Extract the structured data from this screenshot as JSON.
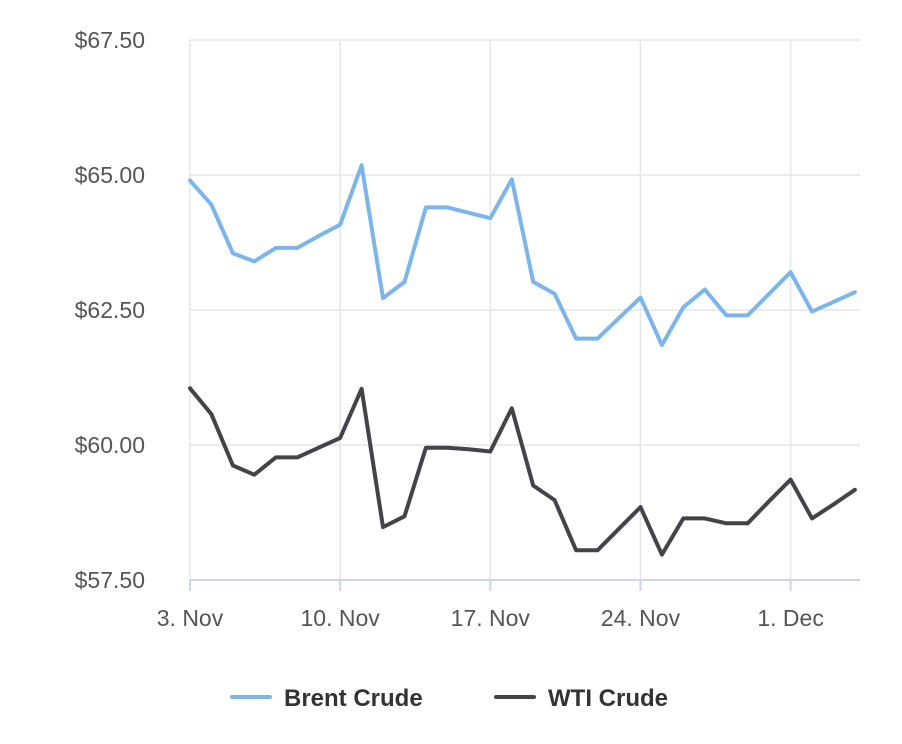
{
  "chart_data": {
    "type": "line",
    "title": "",
    "xlabel": "",
    "ylabel": "",
    "ylim": [
      57.5,
      67.5
    ],
    "y_ticks": [
      "$57.50",
      "$60.00",
      "$62.50",
      "$65.00",
      "$67.50"
    ],
    "y_tick_values": [
      57.5,
      60.0,
      62.5,
      65.0,
      67.5
    ],
    "x_ticks": [
      "3. Nov",
      "10. Nov",
      "17. Nov",
      "24. Nov",
      "1. Dec"
    ],
    "x_tick_dates": [
      "2025-11-03",
      "2025-11-10",
      "2025-11-17",
      "2025-11-24",
      "2025-12-01"
    ],
    "grid": true,
    "legend_position": "bottom",
    "x": [
      "2025-11-03",
      "2025-11-04",
      "2025-11-05",
      "2025-11-06",
      "2025-11-07",
      "2025-11-08",
      "2025-11-09",
      "2025-11-10",
      "2025-11-11",
      "2025-11-12",
      "2025-11-13",
      "2025-11-14",
      "2025-11-15",
      "2025-11-16",
      "2025-11-17",
      "2025-11-18",
      "2025-11-19",
      "2025-11-20",
      "2025-11-21",
      "2025-11-22",
      "2025-11-23",
      "2025-11-24",
      "2025-11-25",
      "2025-11-26",
      "2025-11-27",
      "2025-11-28",
      "2025-11-29",
      "2025-11-30",
      "2025-12-01",
      "2025-12-02",
      "2025-12-03",
      "2025-12-04"
    ],
    "series": [
      {
        "name": "Brent Crude",
        "color": "#7cb5ec",
        "values": [
          64.9,
          64.45,
          63.55,
          63.4,
          63.65,
          63.65,
          63.87,
          64.08,
          65.18,
          62.72,
          63.02,
          64.4,
          64.4,
          64.3,
          64.2,
          64.92,
          63.02,
          62.8,
          61.97,
          61.97,
          62.35,
          62.73,
          61.85,
          62.55,
          62.88,
          62.4,
          62.4,
          62.8,
          63.2,
          62.47,
          62.65,
          62.83
        ]
      },
      {
        "name": "WTI Crude",
        "color": "#434348",
        "values": [
          61.05,
          60.57,
          59.62,
          59.45,
          59.77,
          59.77,
          59.95,
          60.13,
          61.04,
          58.48,
          58.68,
          59.95,
          59.95,
          59.92,
          59.88,
          60.68,
          59.25,
          58.98,
          58.05,
          58.05,
          58.45,
          58.85,
          57.97,
          58.64,
          58.64,
          58.55,
          58.55,
          58.96,
          59.36,
          58.64,
          58.9,
          59.17
        ]
      }
    ]
  }
}
